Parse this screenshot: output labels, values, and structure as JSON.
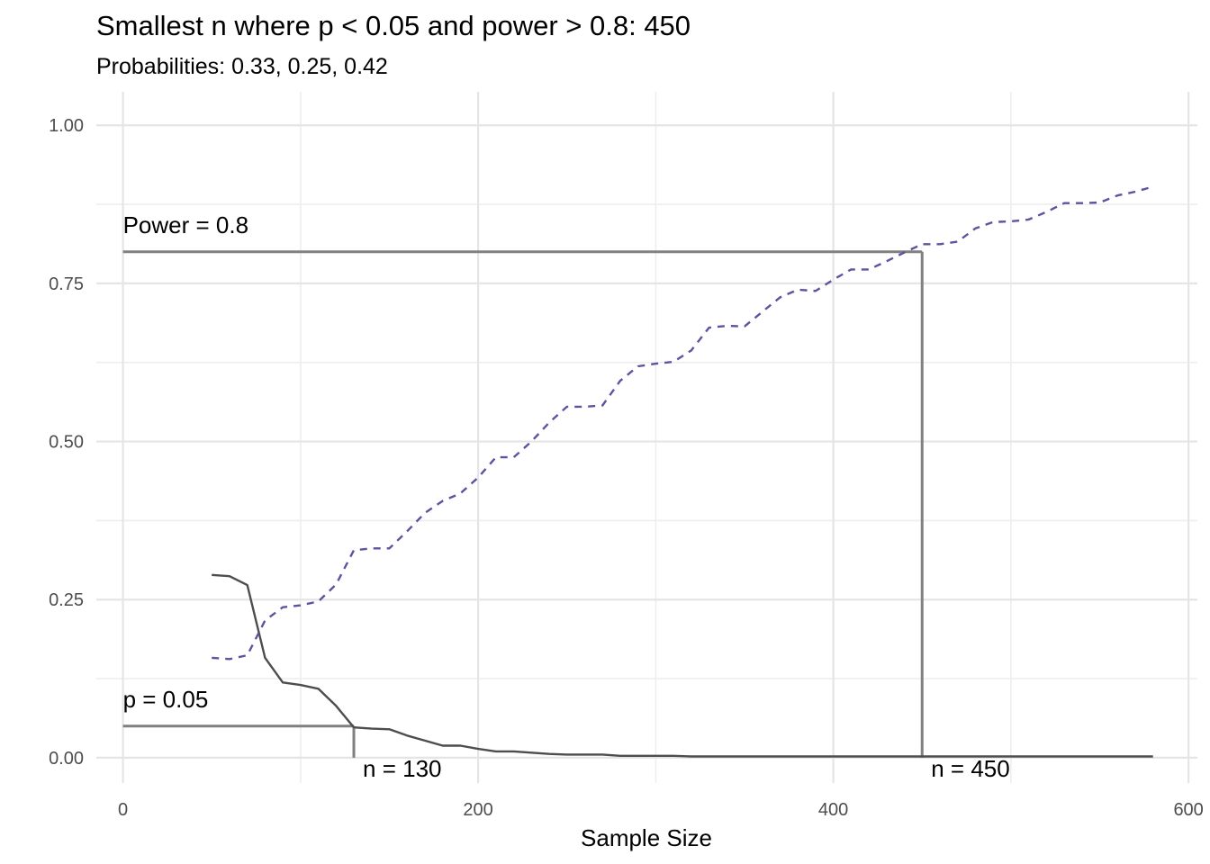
{
  "chart_data": {
    "type": "line",
    "title": "Smallest n where p < 0.05 and power > 0.8: 450",
    "subtitle": "Probabilities: 0.33, 0.25, 0.42",
    "xlabel": "Sample Size",
    "ylabel": "",
    "xlim": [
      -15,
      605
    ],
    "ylim": [
      -0.04,
      1.053
    ],
    "x_ticks": [
      0,
      200,
      400,
      600
    ],
    "x_tick_labels": [
      "0",
      "200",
      "400",
      "600"
    ],
    "y_ticks": [
      0,
      0.25,
      0.5,
      0.75,
      1.0
    ],
    "y_tick_labels": [
      "0.00",
      "0.25",
      "0.50",
      "0.75",
      "1.00"
    ],
    "grid": true,
    "series": [
      {
        "style": "solid",
        "color": "#4d4d4d",
        "x": [
          50,
          60,
          70,
          80,
          90,
          100,
          110,
          120,
          130,
          140,
          150,
          160,
          170,
          180,
          190,
          200,
          210,
          220,
          230,
          240,
          250,
          260,
          270,
          280,
          290,
          300,
          310,
          320,
          330,
          340,
          350,
          360,
          370,
          380,
          390,
          400,
          410,
          420,
          430,
          440,
          450,
          460,
          470,
          480,
          490,
          500,
          510,
          520,
          530,
          540,
          550,
          560,
          570,
          580
        ],
        "values": [
          0.289,
          0.287,
          0.273,
          0.158,
          0.119,
          0.115,
          0.109,
          0.082,
          0.048,
          0.046,
          0.045,
          0.035,
          0.027,
          0.019,
          0.019,
          0.014,
          0.01,
          0.01,
          0.008,
          0.006,
          0.005,
          0.005,
          0.005,
          0.003,
          0.003,
          0.003,
          0.003,
          0.002,
          0.002,
          0.002,
          0.002,
          0.002,
          0.002,
          0.002,
          0.002,
          0.002,
          0.002,
          0.002,
          0.002,
          0.002,
          0.002,
          0.002,
          0.002,
          0.002,
          0.002,
          0.002,
          0.002,
          0.002,
          0.002,
          0.002,
          0.002,
          0.002,
          0.002,
          0.002
        ]
      },
      {
        "style": "dashed",
        "color": "#5e539e",
        "x": [
          50,
          60,
          70,
          80,
          90,
          100,
          110,
          120,
          130,
          140,
          150,
          160,
          170,
          180,
          190,
          200,
          210,
          220,
          230,
          240,
          250,
          260,
          270,
          280,
          290,
          300,
          310,
          320,
          330,
          340,
          350,
          360,
          370,
          380,
          390,
          400,
          410,
          420,
          430,
          440,
          450,
          460,
          470,
          480,
          490,
          500,
          510,
          520,
          530,
          540,
          550,
          560,
          570,
          580
        ],
        "values": [
          0.158,
          0.156,
          0.162,
          0.217,
          0.238,
          0.241,
          0.247,
          0.274,
          0.328,
          0.331,
          0.331,
          0.358,
          0.387,
          0.406,
          0.418,
          0.443,
          0.475,
          0.475,
          0.5,
          0.53,
          0.555,
          0.555,
          0.557,
          0.596,
          0.619,
          0.623,
          0.626,
          0.644,
          0.68,
          0.683,
          0.682,
          0.705,
          0.728,
          0.74,
          0.738,
          0.756,
          0.772,
          0.772,
          0.785,
          0.799,
          0.812,
          0.812,
          0.816,
          0.837,
          0.847,
          0.848,
          0.851,
          0.863,
          0.877,
          0.877,
          0.878,
          0.889,
          0.895,
          0.903
        ]
      }
    ],
    "reference_lines": [
      {
        "kind": "horizontal",
        "y": 0.8,
        "x_from": 0,
        "x_to": 450,
        "label": "Power = 0.8"
      },
      {
        "kind": "vertical",
        "x": 450,
        "y_from": 0,
        "y_to": 0.8,
        "label": "n = 450"
      },
      {
        "kind": "horizontal",
        "y": 0.05,
        "x_from": 0,
        "x_to": 130,
        "label": "p = 0.05"
      },
      {
        "kind": "vertical",
        "x": 130,
        "y_from": 0,
        "y_to": 0.05,
        "label": "n = 130"
      }
    ],
    "reference_color": "#808080"
  }
}
